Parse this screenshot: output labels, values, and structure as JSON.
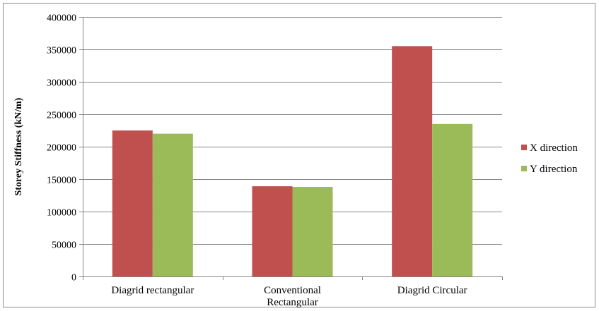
{
  "chart_data": {
    "type": "bar",
    "categories": [
      "Diagrid rectangular",
      "Conventional Rectangular",
      "Diagrid Circular"
    ],
    "category_lines": [
      [
        "Diagrid rectangular"
      ],
      [
        "Conventional",
        "Rectangular"
      ],
      [
        "Diagrid Circular"
      ]
    ],
    "series": [
      {
        "name": "X direction",
        "color": "#c0504d",
        "values": [
          225000,
          139000,
          355000
        ]
      },
      {
        "name": "Y direction",
        "color": "#9bbb59",
        "values": [
          220000,
          138000,
          235000
        ]
      }
    ],
    "ylabel": "Storey Stiffness (kN/m)",
    "ylim": [
      0,
      400000
    ],
    "yticks": [
      "0",
      "50000",
      "100000",
      "150000",
      "200000",
      "250000",
      "300000",
      "350000",
      "400000"
    ],
    "grid": true,
    "legend_position": "right"
  }
}
